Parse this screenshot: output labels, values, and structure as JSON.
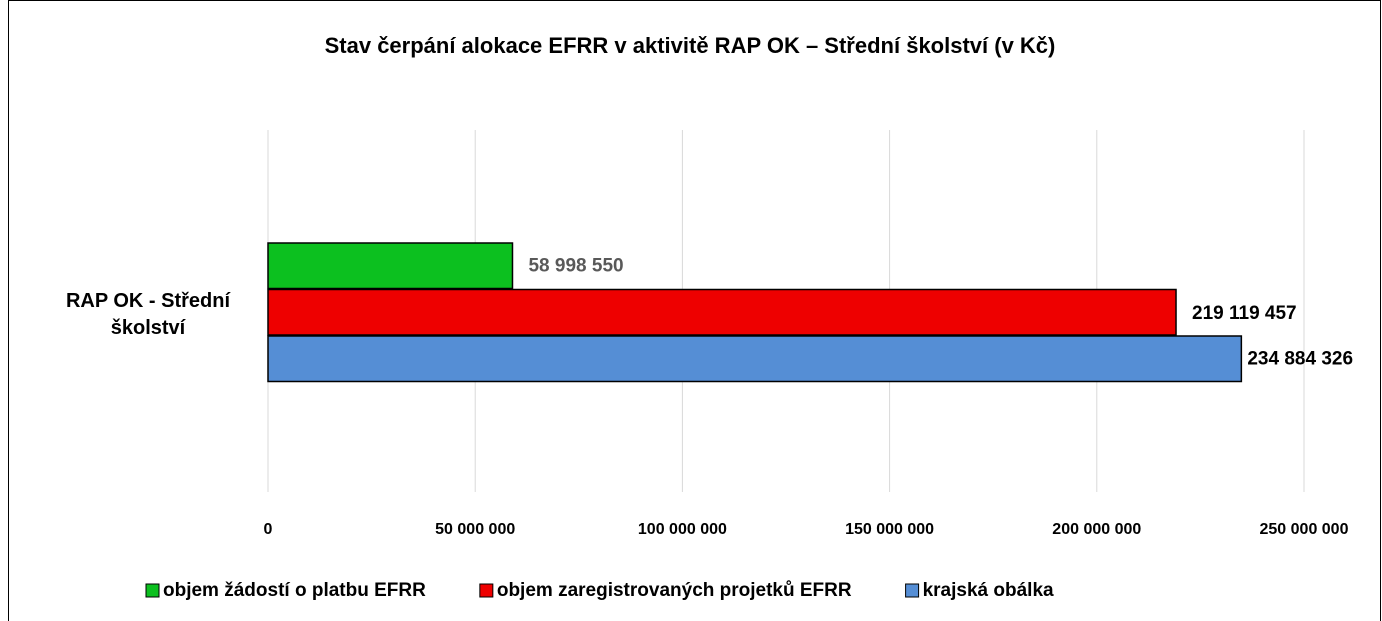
{
  "chart_data": {
    "type": "bar",
    "orientation": "horizontal",
    "title": "Stav čerpání alokace EFRR v aktivitě RAP OK – Střední školství (v Kč)",
    "categories": [
      "RAP OK - Střední školství"
    ],
    "series": [
      {
        "name": "objem žádostí o platbu EFRR",
        "color": "#0cc01f",
        "values": [
          58998550
        ],
        "value_labels": [
          "58 998 550"
        ],
        "label_color": "#595959"
      },
      {
        "name": "objem zaregistrovaných projetků EFRR",
        "color": "#ee0000",
        "values": [
          219119457
        ],
        "value_labels": [
          "219 119 457"
        ],
        "label_color": "#000000"
      },
      {
        "name": "krajská obálka",
        "color": "#558ed5",
        "values": [
          234884326
        ],
        "value_labels": [
          "234 884 326"
        ],
        "label_color": "#000000"
      }
    ],
    "xlim": [
      0,
      250000000
    ],
    "xticks": [
      0,
      {
        "value": 50000000,
        "label": "50 000 000"
      },
      {
        "value": 100000000,
        "label": "100 000 000"
      },
      {
        "value": 150000000,
        "label": "150 000 000"
      },
      {
        "value": 200000000,
        "label": "200 000 000"
      },
      {
        "value": 250000000,
        "label": "250 000 000"
      }
    ],
    "grid": true,
    "legend": "bottom"
  }
}
